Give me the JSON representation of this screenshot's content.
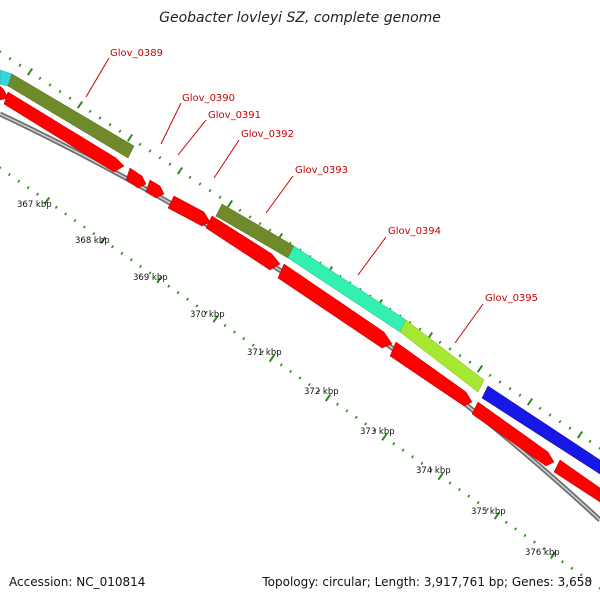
{
  "title": "Geobacter lovleyi SZ, complete genome",
  "footer": {
    "accession": "Accession: NC_010814",
    "topology": "Topology: circular; Length: 3,917,761 bp; Genes: 3,658"
  },
  "colors": {
    "cds_forward": "#ff0000",
    "backbone": "#7a7a7a",
    "ticks": "#2a8a1a",
    "label": "#cc0000",
    "olive": "#6f8a2b",
    "cyan": "#34d6d6",
    "aquamarine": "#33f0b0",
    "yellow_green": "#a6e831",
    "blue": "#1818e6"
  },
  "genes": [
    {
      "locus": "Glov_0389"
    },
    {
      "locus": "Glov_0390"
    },
    {
      "locus": "Glov_0391"
    },
    {
      "locus": "Glov_0392"
    },
    {
      "locus": "Glov_0393"
    },
    {
      "locus": "Glov_0394"
    },
    {
      "locus": "Glov_0395"
    }
  ],
  "kbp_ticks": [
    "367 kbp",
    "368 kbp",
    "369 kbp",
    "370 kbp",
    "371 kbp",
    "372 kbp",
    "373 kbp",
    "374 kbp",
    "375 kbp",
    "376 kbp"
  ]
}
